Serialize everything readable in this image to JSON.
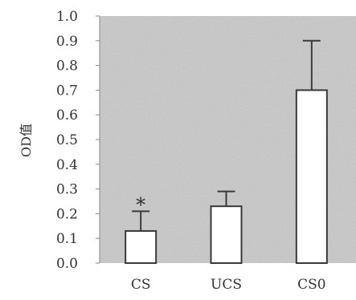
{
  "chart_data": {
    "type": "bar",
    "title": "",
    "xlabel": "",
    "ylabel": "OD值",
    "ylim": [
      0,
      1.0
    ],
    "yticks": [
      "0.0",
      "0.1",
      "0.2",
      "0.3",
      "0.4",
      "0.5",
      "0.6",
      "0.7",
      "0.8",
      "0.9",
      "1.0"
    ],
    "categories": [
      "CS",
      "UCS",
      "CS0"
    ],
    "values": [
      0.13,
      0.23,
      0.7
    ],
    "error_upper": [
      0.21,
      0.29,
      0.9
    ],
    "annotations": [
      {
        "category": "CS",
        "text": "*"
      }
    ],
    "grid": false,
    "colors": {
      "plot_background": "#cfcfcf",
      "bar_fill": "#ffffff",
      "bar_stroke": "#3a3a3a"
    }
  }
}
